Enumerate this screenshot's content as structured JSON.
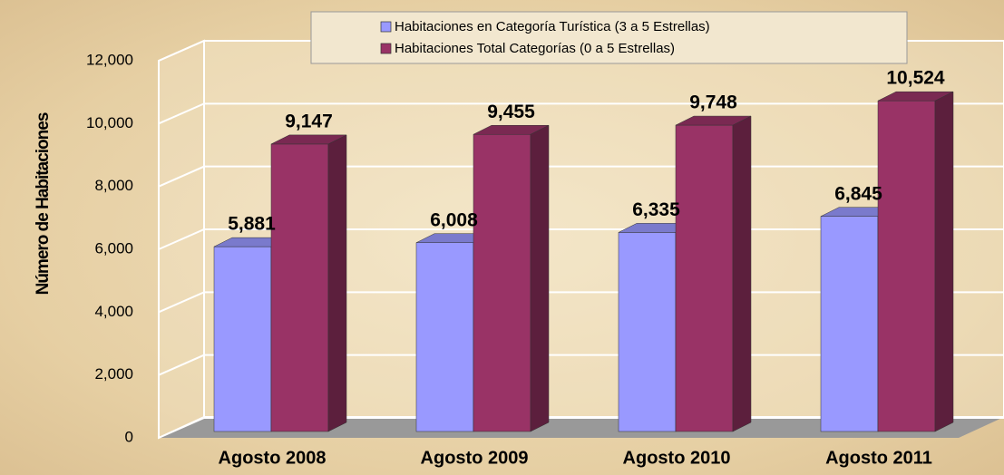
{
  "chart_data": {
    "type": "bar3d",
    "y_label": "Número de Habitaciones",
    "categories": [
      "Agosto 2008",
      "Agosto 2009",
      "Agosto 2010",
      "Agosto 2011"
    ],
    "series": [
      {
        "name": "Habitaciones en Categoría Turística (3 a 5 Estrellas)",
        "color": "#9999ff",
        "values": [
          5881,
          6008,
          6335,
          6845
        ],
        "value_labels": [
          "5,881",
          "6,008",
          "6,335",
          "6,845"
        ]
      },
      {
        "name": "Habitaciones Total Categorías (0 a 5 Estrellas)",
        "color": "#993366",
        "values": [
          9147,
          9455,
          9748,
          10524
        ],
        "value_labels": [
          "9,147",
          "9,455",
          "9,748",
          "10,524"
        ]
      }
    ],
    "ylim": [
      0,
      12000
    ],
    "yticks": [
      0,
      {
        "value": 2000,
        "label": "2,000"
      },
      {
        "value": 4000,
        "label": "4,000"
      },
      {
        "value": 6000,
        "label": "6,000"
      },
      {
        "value": 8000,
        "label": "8,000"
      },
      {
        "value": 10000,
        "label": "10,000"
      },
      {
        "value": 12000,
        "label": "12,000"
      }
    ],
    "grid": true,
    "legend": "top"
  }
}
